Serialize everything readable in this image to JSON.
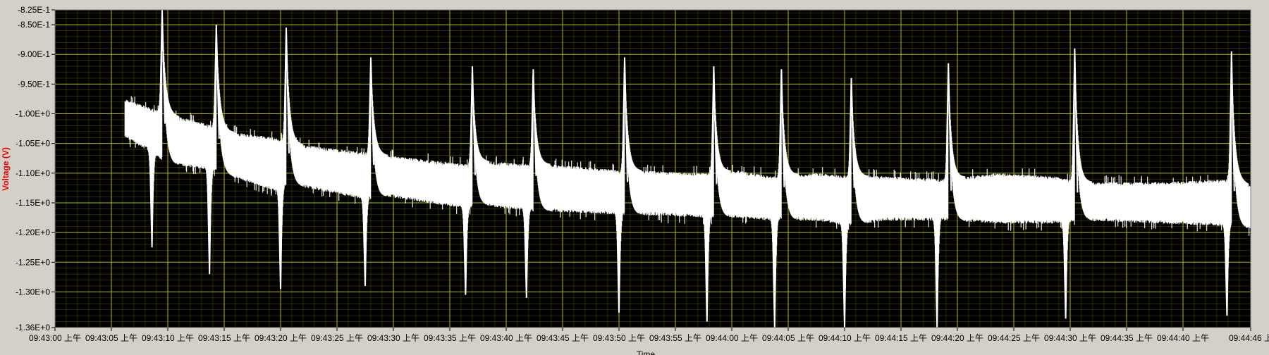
{
  "chart_data": {
    "type": "line",
    "title": "",
    "xlabel": "Time",
    "ylabel": "Voltage (V)",
    "y_axis": {
      "range": [
        -1.36,
        -0.825
      ],
      "ticks": [
        {
          "value": -0.825,
          "label": "-8.25E-1"
        },
        {
          "value": -0.85,
          "label": "-8.50E-1"
        },
        {
          "value": -0.9,
          "label": "-9.00E-1"
        },
        {
          "value": -0.95,
          "label": "-9.50E-1"
        },
        {
          "value": -1.0,
          "label": "-1.00E+0"
        },
        {
          "value": -1.05,
          "label": "-1.05E+0"
        },
        {
          "value": -1.1,
          "label": "-1.10E+0"
        },
        {
          "value": -1.15,
          "label": "-1.15E+0"
        },
        {
          "value": -1.2,
          "label": "-1.20E+0"
        },
        {
          "value": -1.25,
          "label": "-1.25E+0"
        },
        {
          "value": -1.3,
          "label": "-1.30E+0"
        },
        {
          "value": -1.36,
          "label": "-1.36E+0"
        }
      ]
    },
    "x_axis": {
      "range": [
        "09:43:00",
        "09:44:46"
      ],
      "ticks": [
        {
          "t": "09:43:00",
          "label": "09:43:00 上午"
        },
        {
          "t": "09:43:05",
          "label": "09:43:05 上午"
        },
        {
          "t": "09:43:10",
          "label": "09:43:10 上午"
        },
        {
          "t": "09:43:15",
          "label": "09:43:15 上午"
        },
        {
          "t": "09:43:20",
          "label": "09:43:20 上午"
        },
        {
          "t": "09:43:25",
          "label": "09:43:25 上午"
        },
        {
          "t": "09:43:30",
          "label": "09:43:30 上午"
        },
        {
          "t": "09:43:35",
          "label": "09:43:35 上午"
        },
        {
          "t": "09:43:40",
          "label": "09:43:40 上午"
        },
        {
          "t": "09:43:45",
          "label": "09:43:45 上午"
        },
        {
          "t": "09:43:50",
          "label": "09:43:50 上午"
        },
        {
          "t": "09:43:55",
          "label": "09:43:55 上午"
        },
        {
          "t": "09:44:00",
          "label": "09:44:00 上午"
        },
        {
          "t": "09:44:05",
          "label": "09:44:05 上午"
        },
        {
          "t": "09:44:10",
          "label": "09:44:10 上午"
        },
        {
          "t": "09:44:15",
          "label": "09:44:15 上午"
        },
        {
          "t": "09:44:20",
          "label": "09:44:20 上午"
        },
        {
          "t": "09:44:25",
          "label": "09:44:25 上午"
        },
        {
          "t": "09:44:30",
          "label": "09:44:30 上午"
        },
        {
          "t": "09:44:35",
          "label": "09:44:35 上午"
        },
        {
          "t": "09:44:40",
          "label": "09:44:40 上午"
        },
        {
          "t": "09:44:46",
          "label": "09:44:46 上"
        }
      ]
    },
    "grid": true,
    "colors": {
      "background": "#000000",
      "grid": "#b8b800",
      "trace": "#ffffff",
      "frame": "#d4d0c8",
      "ylabel": "#e00000"
    },
    "series": [
      {
        "band": [
          {
            "t": "09:43:06.2",
            "top": -0.975,
            "bottom": -1.04
          },
          {
            "t": "09:43:08.5",
            "top": -0.99,
            "bottom": -1.065
          },
          {
            "t": "09:43:10.0",
            "top": -1.0,
            "bottom": -1.085
          },
          {
            "t": "09:43:14.0",
            "top": -1.02,
            "bottom": -1.095
          },
          {
            "t": "09:43:15.5",
            "top": -1.03,
            "bottom": -1.105
          },
          {
            "t": "09:43:19.5",
            "top": -1.04,
            "bottom": -1.13
          },
          {
            "t": "09:43:21.0",
            "top": -1.05,
            "bottom": -1.12
          },
          {
            "t": "09:43:27.5",
            "top": -1.065,
            "bottom": -1.145
          },
          {
            "t": "09:43:29.5",
            "top": -1.07,
            "bottom": -1.14
          },
          {
            "t": "09:43:36.5",
            "top": -1.085,
            "bottom": -1.16
          },
          {
            "t": "09:43:38.0",
            "top": -1.08,
            "bottom": -1.155
          },
          {
            "t": "09:43:42.5",
            "top": -1.085,
            "bottom": -1.165
          },
          {
            "t": "09:43:44.0",
            "top": -1.085,
            "bottom": -1.165
          },
          {
            "t": "09:43:50.0",
            "top": -1.095,
            "bottom": -1.17
          },
          {
            "t": "09:43:51.0",
            "top": -1.095,
            "bottom": -1.17
          },
          {
            "t": "09:43:57.5",
            "top": -1.1,
            "bottom": -1.175
          },
          {
            "t": "09:44:00.5",
            "top": -1.095,
            "bottom": -1.175
          },
          {
            "t": "09:44:03.5",
            "top": -1.105,
            "bottom": -1.18
          },
          {
            "t": "09:44:07.5",
            "top": -1.1,
            "bottom": -1.18
          },
          {
            "t": "09:44:10.5",
            "top": -1.105,
            "bottom": -1.19
          },
          {
            "t": "09:44:13.5",
            "top": -1.105,
            "bottom": -1.18
          },
          {
            "t": "09:44:19.0",
            "top": -1.11,
            "bottom": -1.18
          },
          {
            "t": "09:44:23.5",
            "top": -1.1,
            "bottom": -1.185
          },
          {
            "t": "09:44:28.5",
            "top": -1.105,
            "bottom": -1.185
          },
          {
            "t": "09:44:31.0",
            "top": -1.115,
            "bottom": -1.18
          },
          {
            "t": "09:44:38.0",
            "top": -1.115,
            "bottom": -1.185
          },
          {
            "t": "09:44:44.5",
            "top": -1.11,
            "bottom": -1.19
          },
          {
            "t": "09:44:46.0",
            "top": -1.12,
            "bottom": -1.195
          }
        ],
        "spikes": [
          {
            "t_neg": "09:43:08.6",
            "neg": -1.225,
            "t_pos": "09:43:09.5",
            "pos": -0.825
          },
          {
            "t_neg": "09:43:13.7",
            "neg": -1.27,
            "t_pos": "09:43:14.3",
            "pos": -0.85
          },
          {
            "t_neg": "09:43:20.0",
            "neg": -1.295,
            "t_pos": "09:43:20.5",
            "pos": -0.855
          },
          {
            "t_neg": "09:43:27.5",
            "neg": -1.29,
            "t_pos": "09:43:28.0",
            "pos": -0.905
          },
          {
            "t_neg": "09:43:36.4",
            "neg": -1.305,
            "t_pos": "09:43:37.0",
            "pos": -0.92
          },
          {
            "t_neg": "09:43:41.8",
            "neg": -1.31,
            "t_pos": "09:43:42.4",
            "pos": -0.925
          },
          {
            "t_neg": "09:43:50.0",
            "neg": -1.335,
            "t_pos": "09:43:50.5",
            "pos": -0.905
          },
          {
            "t_neg": "09:43:57.8",
            "neg": -1.35,
            "t_pos": "09:43:58.4",
            "pos": -0.92
          },
          {
            "t_neg": "09:44:03.8",
            "neg": -1.36,
            "t_pos": "09:44:04.4",
            "pos": -0.925
          },
          {
            "t_neg": "09:44:10.0",
            "neg": -1.36,
            "t_pos": "09:44:10.6",
            "pos": -0.94
          },
          {
            "t_neg": "09:44:18.2",
            "neg": -1.36,
            "t_pos": "09:44:19.2",
            "pos": -0.915
          },
          {
            "t_neg": "09:44:29.6",
            "neg": -1.345,
            "t_pos": "09:44:30.4",
            "pos": -0.89
          },
          {
            "t_neg": "09:44:43.9",
            "neg": -1.34,
            "t_pos": "09:44:44.3",
            "pos": -0.895
          }
        ]
      }
    ]
  }
}
